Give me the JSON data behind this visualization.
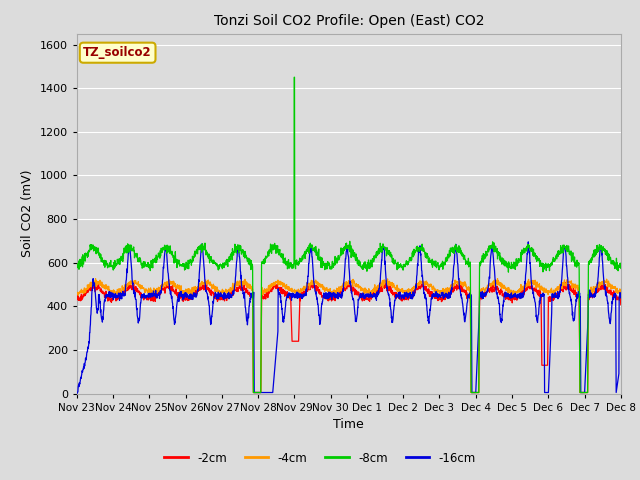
{
  "title": "Tonzi Soil CO2 Profile: Open (East) CO2",
  "xlabel": "Time",
  "ylabel": "Soil CO2 (mV)",
  "ylim": [
    0,
    1650
  ],
  "yticks": [
    0,
    200,
    400,
    600,
    800,
    1000,
    1200,
    1400,
    1600
  ],
  "bg_color": "#dcdcdc",
  "legend_entries": [
    "-2cm",
    "-4cm",
    "-8cm",
    "-16cm"
  ],
  "legend_colors": [
    "#ff0000",
    "#ff9900",
    "#00cc00",
    "#0000dd"
  ],
  "watermark_text": "TZ_soilco2",
  "watermark_bg": "#ffffcc",
  "watermark_border": "#ccaa00",
  "x_start": 0,
  "x_end": 15,
  "xtick_labels": [
    "Nov 23",
    "Nov 24",
    "Nov 25",
    "Nov 26",
    "Nov 27",
    "Nov 28",
    "Nov 29",
    "Nov 30",
    "Dec 1",
    "Dec 2",
    "Dec 3",
    "Dec 4",
    "Dec 5",
    "Dec 6",
    "Dec 7",
    "Dec 8"
  ],
  "xtick_positions": [
    0,
    1,
    2,
    3,
    4,
    5,
    6,
    7,
    8,
    9,
    10,
    11,
    12,
    13,
    14,
    15
  ]
}
